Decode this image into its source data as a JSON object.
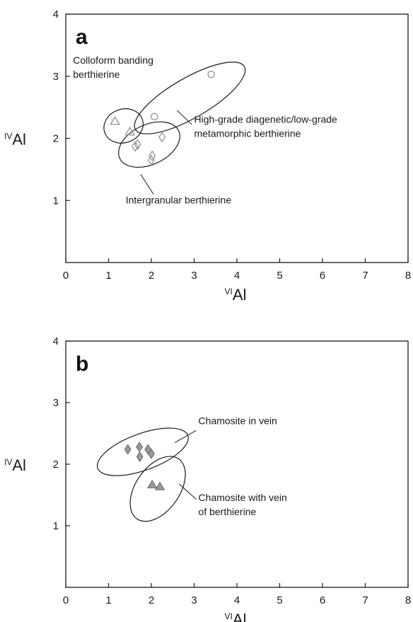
{
  "chart_data": [
    {
      "panel": "a",
      "type": "scatter",
      "xlabel": {
        "sup": "VI",
        "main": "Al"
      },
      "ylabel": {
        "sup": "IV",
        "main": "Al"
      },
      "xlim": [
        0,
        8
      ],
      "ylim": [
        0,
        4
      ],
      "xticks": [
        0,
        1,
        2,
        3,
        4,
        5,
        6,
        7,
        8
      ],
      "yticks": [
        1,
        2,
        3,
        4
      ],
      "grid": false,
      "colors": {
        "stroke": "#9a9a9a",
        "fill": "none",
        "axis": "#1a1a1a"
      },
      "series": [
        {
          "marker": "triangle",
          "filled": false,
          "points": [
            [
              1.15,
              2.27
            ],
            [
              1.5,
              2.1
            ]
          ]
        },
        {
          "marker": "diamond",
          "filled": false,
          "points": [
            [
              1.62,
              1.87
            ],
            [
              1.68,
              1.9
            ],
            [
              2.0,
              1.65
            ],
            [
              2.02,
              1.72
            ],
            [
              2.25,
              2.02
            ]
          ]
        },
        {
          "marker": "circle",
          "filled": false,
          "points": [
            [
              2.07,
              2.35
            ],
            [
              3.4,
              3.03
            ]
          ]
        }
      ],
      "ellipses": [
        {
          "cx": 1.35,
          "cy": 2.2,
          "rx": 0.38,
          "ry": 0.32,
          "angle": 20
        },
        {
          "cx": 1.95,
          "cy": 1.9,
          "rx": 0.62,
          "ry": 0.38,
          "angle": 25
        },
        {
          "cx": 2.9,
          "cy": 2.65,
          "rx": 1.2,
          "ry": 0.38,
          "angle": 30
        }
      ],
      "annotations": [
        {
          "lines": [
            "Colloform banding",
            "berthierine"
          ],
          "x": 0.17,
          "y": 3.2,
          "anchor": "start",
          "leader": null
        },
        {
          "lines": [
            "High-grade diagenetic/low-grade",
            "metamorphic berthierine"
          ],
          "x": 3.0,
          "y": 2.25,
          "anchor": "start",
          "leader": [
            [
              2.95,
              2.22
            ],
            [
              2.6,
              2.45
            ]
          ]
        },
        {
          "lines": [
            "Intergranular berthierine"
          ],
          "x": 1.4,
          "y": 0.95,
          "anchor": "start",
          "leader": [
            [
              2.05,
              1.1
            ],
            [
              1.75,
              1.42
            ]
          ]
        }
      ]
    },
    {
      "panel": "b",
      "type": "scatter",
      "xlabel": {
        "sup": "VI",
        "main": "Al"
      },
      "ylabel": {
        "sup": "IV",
        "main": "Al"
      },
      "xlim": [
        0,
        8
      ],
      "ylim": [
        0,
        4
      ],
      "xticks": [
        0,
        1,
        2,
        3,
        4,
        5,
        6,
        7,
        8
      ],
      "yticks": [
        1,
        2,
        3,
        4
      ],
      "grid": false,
      "colors": {
        "stroke": "#7a7a7a",
        "fill": "#9a9a9a",
        "axis": "#1a1a1a"
      },
      "series": [
        {
          "marker": "diamond",
          "filled": true,
          "points": [
            [
              1.45,
              2.24
            ],
            [
              1.72,
              2.28
            ],
            [
              1.73,
              2.12
            ],
            [
              1.92,
              2.24
            ],
            [
              2.0,
              2.17
            ]
          ]
        },
        {
          "marker": "triangle",
          "filled": true,
          "points": [
            [
              2.02,
              1.66
            ],
            [
              2.2,
              1.63
            ]
          ]
        }
      ],
      "ellipses": [
        {
          "cx": 1.8,
          "cy": 2.2,
          "rx": 0.92,
          "ry": 0.35,
          "angle": 20
        },
        {
          "cx": 2.15,
          "cy": 1.6,
          "rx": 0.7,
          "ry": 0.42,
          "angle": 55
        }
      ],
      "annotations": [
        {
          "lines": [
            "Chamosite in vein"
          ],
          "x": 3.1,
          "y": 2.65,
          "anchor": "start",
          "leader": [
            [
              3.05,
              2.55
            ],
            [
              2.55,
              2.35
            ]
          ]
        },
        {
          "lines": [
            "Chamosite with vein",
            "of berthierine"
          ],
          "x": 3.1,
          "y": 1.4,
          "anchor": "start",
          "leader": [
            [
              3.05,
              1.43
            ],
            [
              2.65,
              1.68
            ]
          ]
        }
      ]
    }
  ]
}
